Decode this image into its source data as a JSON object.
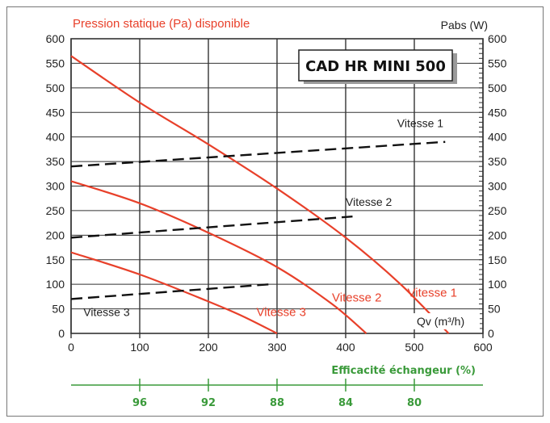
{
  "chart_data": {
    "type": "line",
    "title": "CAD HR MINI 500",
    "left_axis_label": "Pression statique (Pa) disponible",
    "right_axis_label": "Pabs (W)",
    "x_axis_label": "Qv (m³/h)",
    "xlim": [
      0,
      600
    ],
    "ylim": [
      0,
      600
    ],
    "x_ticks": [
      "0",
      "100",
      "200",
      "300",
      "400",
      "500",
      "600"
    ],
    "y_ticks": [
      "0",
      "50",
      "100",
      "150",
      "200",
      "250",
      "300",
      "350",
      "400",
      "450",
      "500",
      "550",
      "600"
    ],
    "pressure_series": [
      {
        "name": "Vitesse 1",
        "label": "Vitesse 1",
        "x": [
          0,
          100,
          200,
          300,
          400,
          480,
          550
        ],
        "y": [
          565,
          470,
          385,
          295,
          195,
          100,
          0
        ]
      },
      {
        "name": "Vitesse 2",
        "label": "Vitesse 2",
        "x": [
          0,
          100,
          200,
          300,
          380,
          430
        ],
        "y": [
          310,
          265,
          205,
          135,
          60,
          0
        ]
      },
      {
        "name": "Vitesse 3",
        "label": "Vitesse 3",
        "x": [
          0,
          100,
          200,
          250,
          300
        ],
        "y": [
          165,
          120,
          65,
          35,
          0
        ]
      }
    ],
    "power_series": [
      {
        "name": "Vitesse 1",
        "label": "Vitesse 1",
        "x": [
          0,
          545
        ],
        "y": [
          340,
          390
        ]
      },
      {
        "name": "Vitesse 2",
        "label": "Vitesse 2",
        "x": [
          0,
          410
        ],
        "y": [
          195,
          238
        ]
      },
      {
        "name": "Vitesse 3",
        "label": "Vitesse 3",
        "x": [
          0,
          290
        ],
        "y": [
          70,
          100
        ]
      }
    ],
    "efficiency_axis": {
      "label": "Efficacité échangeur (%)",
      "ticks": [
        {
          "x": 100,
          "label": "96"
        },
        {
          "x": 200,
          "label": "92"
        },
        {
          "x": 300,
          "label": "88"
        },
        {
          "x": 400,
          "label": "84"
        },
        {
          "x": 500,
          "label": "80"
        }
      ]
    },
    "colors": {
      "pressure": "#e8402a",
      "power": "#111111",
      "grid": "#333333",
      "efficiency": "#3a9a3a"
    }
  }
}
